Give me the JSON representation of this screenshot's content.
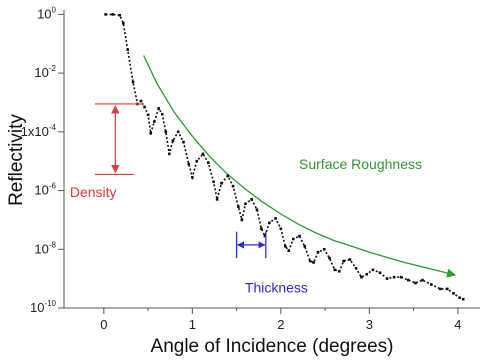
{
  "chart_data": {
    "type": "scatter",
    "xlabel": "Angle of Incidence (degrees)",
    "ylabel": "Reflectivity",
    "xlim": [
      -0.45,
      4.25
    ],
    "ylim_log10": [
      -10,
      0.15
    ],
    "yscale": "log",
    "grid": false,
    "x_ticks": [
      {
        "value": 0,
        "label": "0"
      },
      {
        "value": 1,
        "label": "1"
      },
      {
        "value": 2,
        "label": "2"
      },
      {
        "value": 3,
        "label": "3"
      },
      {
        "value": 4,
        "label": "4"
      }
    ],
    "y_ticks": [
      {
        "value": 0,
        "base": "10",
        "exp": "0"
      },
      {
        "value": -2,
        "base": "10",
        "exp": "-2"
      },
      {
        "value": -4,
        "base": "1x10",
        "exp": "-4"
      },
      {
        "value": -6,
        "base": "10",
        "exp": "-6"
      },
      {
        "value": -8,
        "base": "10",
        "exp": "-8"
      },
      {
        "value": -10,
        "base": "10",
        "exp": "-10"
      }
    ],
    "reflectivity_curve": {
      "color": "#111111",
      "points_x_log10y": [
        [
          0.02,
          0.0
        ],
        [
          0.1,
          0.0
        ],
        [
          0.18,
          -0.03
        ],
        [
          0.22,
          -0.3
        ],
        [
          0.27,
          -1.2
        ],
        [
          0.33,
          -2.3
        ],
        [
          0.38,
          -3.05
        ],
        [
          0.42,
          -2.95
        ],
        [
          0.46,
          -3.15
        ],
        [
          0.5,
          -3.42
        ],
        [
          0.53,
          -4.05
        ],
        [
          0.57,
          -3.65
        ],
        [
          0.62,
          -3.2
        ],
        [
          0.66,
          -3.4
        ],
        [
          0.7,
          -4.0
        ],
        [
          0.74,
          -4.75
        ],
        [
          0.78,
          -4.3
        ],
        [
          0.84,
          -4.0
        ],
        [
          0.9,
          -4.35
        ],
        [
          0.96,
          -5.1
        ],
        [
          1.0,
          -5.55
        ],
        [
          1.05,
          -5.0
        ],
        [
          1.12,
          -4.75
        ],
        [
          1.18,
          -5.05
        ],
        [
          1.24,
          -5.7
        ],
        [
          1.28,
          -6.3
        ],
        [
          1.33,
          -5.75
        ],
        [
          1.4,
          -5.5
        ],
        [
          1.46,
          -5.85
        ],
        [
          1.52,
          -6.55
        ],
        [
          1.56,
          -7.0
        ],
        [
          1.6,
          -6.45
        ],
        [
          1.67,
          -6.3
        ],
        [
          1.73,
          -6.65
        ],
        [
          1.78,
          -7.3
        ],
        [
          1.82,
          -7.55
        ],
        [
          1.87,
          -7.1
        ],
        [
          1.94,
          -6.95
        ],
        [
          2.0,
          -7.3
        ],
        [
          2.05,
          -7.9
        ],
        [
          2.09,
          -8.05
        ],
        [
          2.14,
          -7.65
        ],
        [
          2.21,
          -7.55
        ],
        [
          2.27,
          -7.9
        ],
        [
          2.33,
          -8.4
        ],
        [
          2.37,
          -8.45
        ],
        [
          2.42,
          -8.1
        ],
        [
          2.49,
          -8.0
        ],
        [
          2.55,
          -8.3
        ],
        [
          2.61,
          -8.7
        ],
        [
          2.66,
          -8.75
        ],
        [
          2.71,
          -8.4
        ],
        [
          2.78,
          -8.35
        ],
        [
          2.85,
          -8.65
        ],
        [
          2.91,
          -8.95
        ],
        [
          2.97,
          -8.85
        ],
        [
          3.04,
          -8.7
        ],
        [
          3.12,
          -8.8
        ],
        [
          3.2,
          -9.0
        ],
        [
          3.28,
          -8.95
        ],
        [
          3.36,
          -8.95
        ],
        [
          3.44,
          -9.05
        ],
        [
          3.52,
          -9.15
        ],
        [
          3.6,
          -9.05
        ],
        [
          3.7,
          -9.2
        ],
        [
          3.8,
          -9.35
        ],
        [
          3.88,
          -9.35
        ],
        [
          3.95,
          -9.5
        ],
        [
          4.02,
          -9.65
        ],
        [
          4.06,
          -9.7
        ]
      ]
    },
    "surface_roughness_curve": {
      "label": "Surface Roughness",
      "color": "#2e9a2e",
      "points_x_log10y": [
        [
          0.45,
          -1.4
        ],
        [
          0.6,
          -2.35
        ],
        [
          0.8,
          -3.35
        ],
        [
          1.0,
          -4.15
        ],
        [
          1.2,
          -4.85
        ],
        [
          1.4,
          -5.45
        ],
        [
          1.6,
          -5.95
        ],
        [
          1.8,
          -6.4
        ],
        [
          2.0,
          -6.8
        ],
        [
          2.2,
          -7.15
        ],
        [
          2.4,
          -7.45
        ],
        [
          2.6,
          -7.7
        ],
        [
          2.8,
          -7.9
        ],
        [
          3.0,
          -8.1
        ],
        [
          3.2,
          -8.28
        ],
        [
          3.4,
          -8.45
        ],
        [
          3.6,
          -8.6
        ],
        [
          3.8,
          -8.75
        ],
        [
          3.97,
          -8.88
        ]
      ]
    },
    "annotations": {
      "density": {
        "label": "Density",
        "color": "#e23a3a",
        "x_left": -0.1,
        "x_right": 0.45,
        "x_arrow": 0.13,
        "y_top_log10": -3.05,
        "y_bottom_log10": -5.45,
        "label_x": -0.12,
        "label_y_log10": -6.05
      },
      "thickness": {
        "label": "Thickness",
        "color": "#2b2bd6",
        "x_left": 1.5,
        "x_right": 1.83,
        "y_log10": -7.85,
        "tick_half_log10": 0.45,
        "label_x": 1.95,
        "label_y_log10": -9.3
      },
      "surface_roughness": {
        "label_x": 2.9,
        "label_y_log10": -5.1
      }
    }
  }
}
